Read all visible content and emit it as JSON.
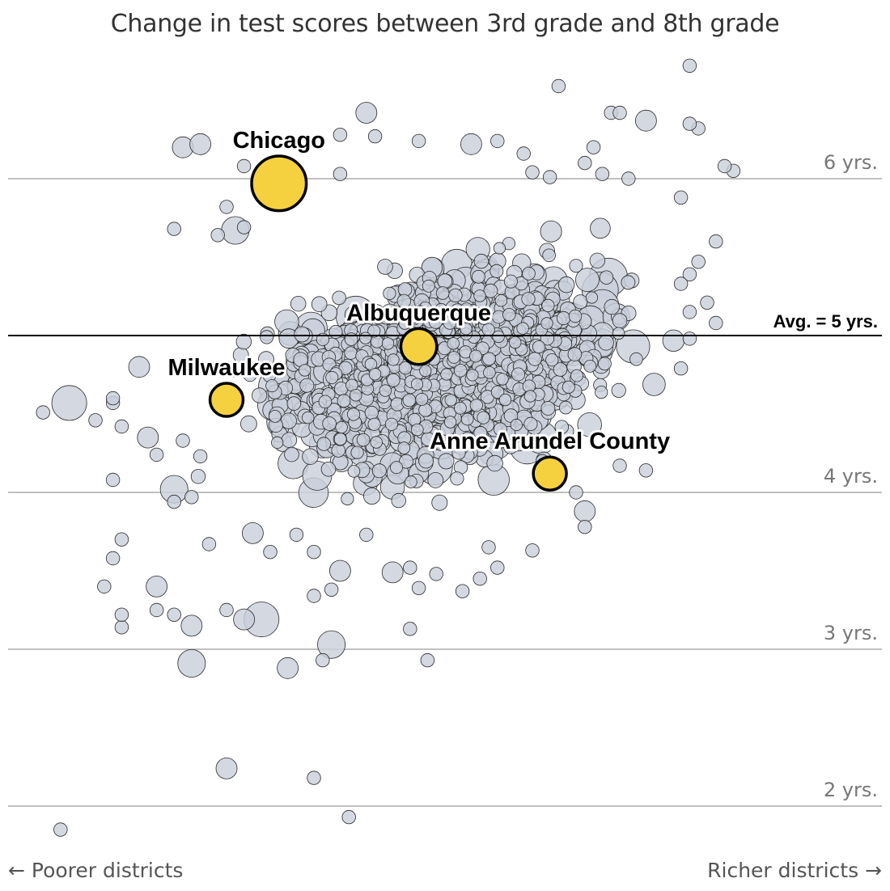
{
  "chart_data": {
    "type": "scatter",
    "title": "Change in test scores between 3rd grade and 8th grade",
    "x_axis": {
      "left_label": "← Poorer districts",
      "right_label": "Richer districts →"
    },
    "y_axis": {
      "unit": "years",
      "range": [
        1.85,
        6.95
      ],
      "gridlines": [
        {
          "value": 6,
          "label": "6 yrs."
        },
        {
          "value": 4,
          "label": "4 yrs."
        },
        {
          "value": 3,
          "label": "3 yrs."
        },
        {
          "value": 2,
          "label": "2 yrs."
        }
      ]
    },
    "average_line": {
      "value": 5,
      "label": "Avg. = 5 yrs."
    },
    "highlighted": [
      {
        "name": "Chicago",
        "x": 0.31,
        "y": 5.97,
        "size": 9.0
      },
      {
        "name": "Albuquerque",
        "x": 0.47,
        "y": 4.93,
        "size": 3.2
      },
      {
        "name": "Milwaukee",
        "x": 0.25,
        "y": 4.59,
        "size": 2.6
      },
      {
        "name": "Anne Arundel County",
        "x": 0.62,
        "y": 4.12,
        "size": 2.6
      }
    ],
    "highlight_color": "#f6d13f",
    "point_color": "#c9d0db",
    "outliers": [
      [
        0.78,
        6.72,
        1
      ],
      [
        0.63,
        6.59,
        1
      ],
      [
        0.41,
        6.42,
        2
      ],
      [
        0.69,
        6.42,
        1
      ],
      [
        0.7,
        6.42,
        1
      ],
      [
        0.73,
        6.37,
        2
      ],
      [
        0.2,
        6.2,
        2
      ],
      [
        0.22,
        6.22,
        2
      ],
      [
        0.27,
        6.08,
        1
      ],
      [
        0.38,
        6.28,
        1
      ],
      [
        0.42,
        6.27,
        1
      ],
      [
        0.79,
        6.32,
        1
      ],
      [
        0.83,
        6.05,
        1
      ],
      [
        0.38,
        6.03,
        1
      ],
      [
        0.19,
        5.68,
        1
      ],
      [
        0.26,
        5.67,
        3
      ],
      [
        0.24,
        5.64,
        1
      ],
      [
        0.07,
        4.57,
        4
      ],
      [
        0.04,
        4.51,
        1
      ],
      [
        0.12,
        4.57,
        1
      ],
      [
        0.15,
        4.8,
        2
      ],
      [
        0.12,
        4.6,
        1
      ],
      [
        0.13,
        4.42,
        1
      ],
      [
        0.1,
        4.46,
        1
      ],
      [
        0.16,
        4.35,
        2
      ],
      [
        0.17,
        4.24,
        1
      ],
      [
        0.12,
        4.08,
        1
      ],
      [
        0.19,
        4.02,
        3
      ],
      [
        0.13,
        3.7,
        1
      ],
      [
        0.12,
        3.58,
        1
      ],
      [
        0.11,
        3.4,
        1
      ],
      [
        0.17,
        3.4,
        2
      ],
      [
        0.17,
        3.25,
        1
      ],
      [
        0.13,
        3.14,
        1
      ],
      [
        0.21,
        3.15,
        2
      ],
      [
        0.13,
        3.22,
        1
      ],
      [
        0.19,
        3.22,
        1
      ],
      [
        0.25,
        3.25,
        1
      ],
      [
        0.27,
        3.19,
        2
      ],
      [
        0.29,
        3.19,
        4
      ],
      [
        0.21,
        2.91,
        3
      ],
      [
        0.32,
        2.88,
        2
      ],
      [
        0.36,
        2.93,
        1
      ],
      [
        0.37,
        3.03,
        3
      ],
      [
        0.25,
        2.24,
        2
      ],
      [
        0.35,
        2.18,
        1
      ],
      [
        0.06,
        1.85,
        1
      ],
      [
        0.39,
        1.93,
        1
      ],
      [
        0.48,
        2.93,
        1
      ],
      [
        0.46,
        3.13,
        1
      ],
      [
        0.35,
        3.34,
        1
      ],
      [
        0.44,
        3.49,
        2
      ],
      [
        0.54,
        3.45,
        1
      ],
      [
        0.55,
        3.65,
        1
      ],
      [
        0.6,
        3.63,
        1
      ],
      [
        0.66,
        3.78,
        1
      ],
      [
        0.66,
        3.88,
        2
      ],
      [
        0.65,
        4.0,
        1
      ],
      [
        0.7,
        4.17,
        1
      ],
      [
        0.73,
        4.14,
        1
      ],
      [
        0.77,
        4.79,
        1
      ],
      [
        0.78,
        5.15,
        1
      ],
      [
        0.8,
        5.21,
        1
      ],
      [
        0.81,
        5.08,
        1
      ],
      [
        0.79,
        5.47,
        1
      ],
      [
        0.81,
        5.6,
        1
      ],
      [
        0.78,
        5.39,
        1
      ],
      [
        0.77,
        5.33,
        1
      ],
      [
        0.78,
        4.98,
        1
      ],
      [
        0.77,
        5.88,
        1
      ],
      [
        0.82,
        6.08,
        1
      ],
      [
        0.78,
        6.35,
        1
      ],
      [
        0.46,
        3.52,
        1
      ],
      [
        0.49,
        3.48,
        1
      ],
      [
        0.47,
        3.39,
        1
      ],
      [
        0.37,
        3.38,
        1
      ],
      [
        0.38,
        3.5,
        2
      ],
      [
        0.41,
        3.73,
        1
      ],
      [
        0.52,
        3.37,
        1
      ],
      [
        0.56,
        3.52,
        1
      ],
      [
        0.28,
        3.74,
        2
      ],
      [
        0.3,
        3.62,
        1
      ],
      [
        0.33,
        3.73,
        1
      ],
      [
        0.35,
        3.62,
        1
      ],
      [
        0.23,
        3.67,
        1
      ],
      [
        0.19,
        3.94,
        1
      ],
      [
        0.21,
        3.97,
        1
      ],
      [
        0.2,
        4.33,
        1
      ],
      [
        0.22,
        4.23,
        1
      ],
      [
        0.25,
        5.82,
        1
      ],
      [
        0.27,
        5.69,
        1
      ],
      [
        0.59,
        6.16,
        1
      ],
      [
        0.53,
        6.22,
        2
      ],
      [
        0.56,
        6.24,
        1
      ],
      [
        0.67,
        6.2,
        1
      ],
      [
        0.66,
        6.1,
        1
      ],
      [
        0.6,
        6.04,
        1
      ],
      [
        0.62,
        6.01,
        1
      ],
      [
        0.47,
        6.24,
        1
      ],
      [
        0.68,
        6.03,
        1
      ],
      [
        0.71,
        6.0,
        1
      ]
    ]
  }
}
